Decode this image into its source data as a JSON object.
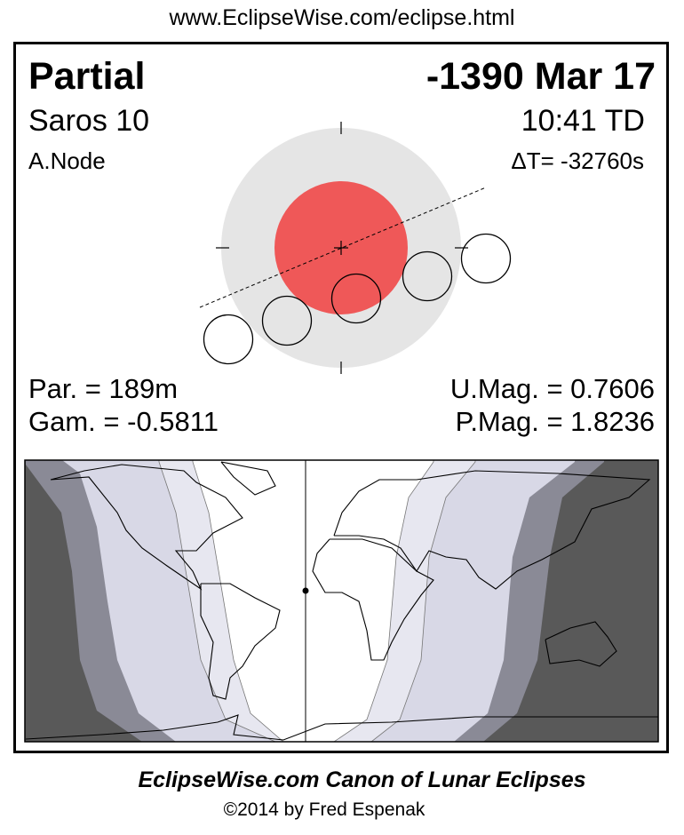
{
  "header": {
    "url": "www.EclipseWise.com/eclipse.html"
  },
  "eclipse": {
    "type": "Partial",
    "date": "-1390 Mar 17",
    "saros": "Saros  10",
    "time": "10:41 TD",
    "node": "A.Node",
    "delta_t": "ΔT= -32760s",
    "partial_duration": "Par. = 189m",
    "gamma": "Gam. = -0.5811",
    "umbral_magnitude": "U.Mag. = 0.7606",
    "penumbral_magnitude": "P.Mag. = 1.8236"
  },
  "colors": {
    "umbra": "#ef5858",
    "penumbra": "#e5e5e5",
    "map_night": "#595959",
    "map_penumbral_edge": "#8a8a96",
    "map_partial": "#d8d8e6",
    "map_light": "#e7e7f0"
  },
  "footer": {
    "title": "EclipseWise.com Canon of Lunar Eclipses",
    "copyright": "©2014 by Fred Espenak"
  }
}
